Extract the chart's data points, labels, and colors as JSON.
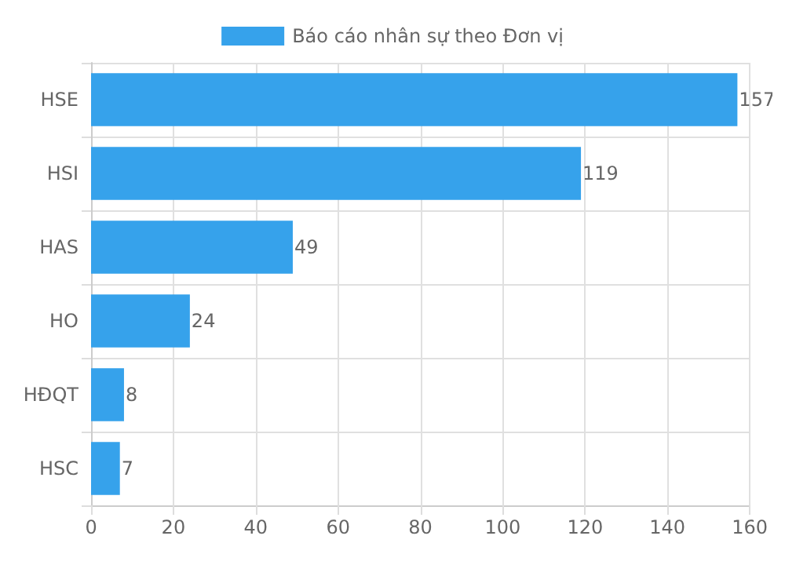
{
  "chart_data": {
    "type": "bar",
    "orientation": "horizontal",
    "categories": [
      "HSE",
      "HSI",
      "HAS",
      "HO",
      "HĐQT",
      "HSC"
    ],
    "series": [
      {
        "name": "Báo cáo nhân sự theo Đơn vị",
        "color": "#36a2eb",
        "values": [
          157,
          119,
          49,
          24,
          8,
          7
        ]
      }
    ],
    "xlim": [
      0,
      160
    ],
    "xticks": [
      0,
      20,
      40,
      60,
      80,
      100,
      120,
      140,
      160
    ],
    "grid": true,
    "legend": "top",
    "data_labels": true
  }
}
